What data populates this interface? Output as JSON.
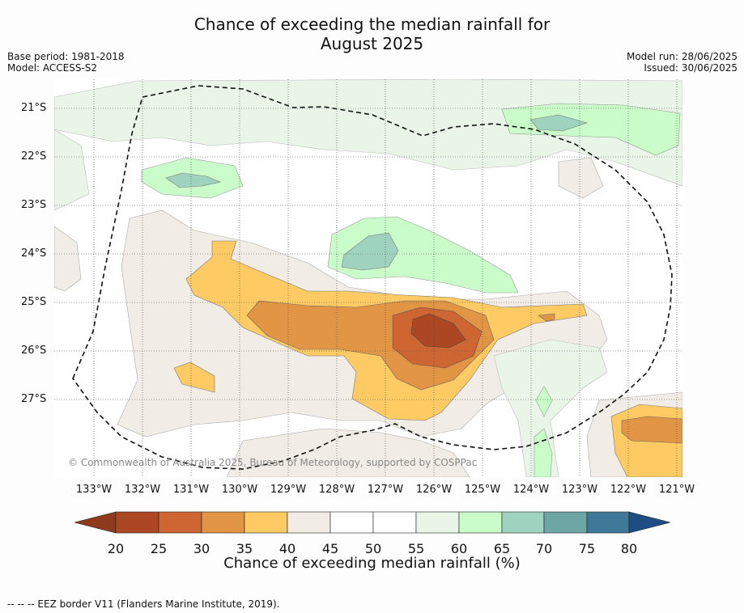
{
  "title_line1": "Chance of exceeding the median rainfall for",
  "title_line2": "August 2025",
  "base_period": "Base period: 1981-2018",
  "model": "Model: ACCESS-S2",
  "model_run": "Model run: 28/06/2025",
  "issued": "Issued: 30/06/2025",
  "copyright": "© Commonwealth of Australia 2025, Bureau of Meteorology, supported by COSPPac",
  "footer": "--  --  -- EEZ border V11 (Flanders Marine Institute, 2019).",
  "lat_labels": [
    "21°S",
    "22°S",
    "23°S",
    "24°S",
    "25°S",
    "26°S",
    "27°S"
  ],
  "lon_labels": [
    "133°W",
    "132°W",
    "131°W",
    "130°W",
    "129°W",
    "128°W",
    "127°W",
    "126°W",
    "125°W",
    "124°W",
    "123°W",
    "122°W",
    "121°W"
  ],
  "colorbar": {
    "label": "Chance of exceeding median rainfall (%)",
    "ticks": [
      "20",
      "25",
      "30",
      "35",
      "40",
      "45",
      "50",
      "55",
      "60",
      "65",
      "70",
      "75",
      "80"
    ],
    "colors": [
      "#8e3a1c",
      "#ad4723",
      "#cd6633",
      "#e29545",
      "#fdca63",
      "#f1ece6",
      "#ffffff",
      "#ffffff",
      "#e8f5e7",
      "#c9fcc9",
      "#9fd3bf",
      "#6ea5a5",
      "#3f7898",
      "#1e4d84"
    ]
  },
  "icons": [
    "colorbar-left-arrow",
    "colorbar-right-arrow"
  ]
}
